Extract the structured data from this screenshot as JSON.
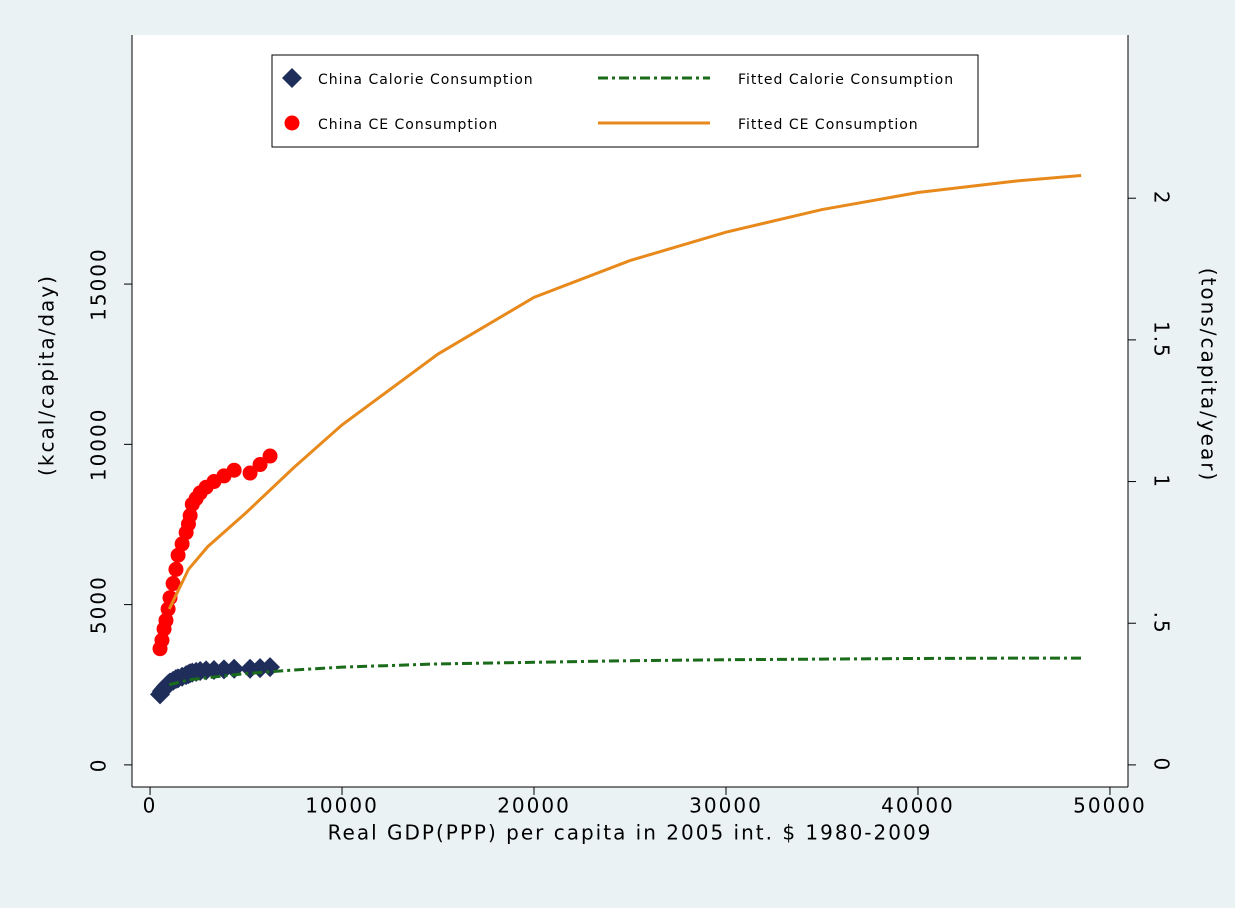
{
  "chart_data": {
    "type": "scatter",
    "x_label": "Real GDP(PPP) per capita in 2005 int. $ 1980-2009",
    "y_label": "(kcal/capita/day)",
    "y2_label": "(tons/capita/year)",
    "xlim": [
      -940,
      50940
    ],
    "xticks": [
      0,
      10000,
      20000,
      30000,
      40000,
      50000
    ],
    "ylim": [
      -690,
      22770
    ],
    "yticks": [
      0,
      5000,
      10000,
      15000
    ],
    "y2lim": [
      -0.078,
      2.576
    ],
    "y2ticks": [
      0,
      {
        "value": 0.5,
        "label": ".5"
      },
      1,
      {
        "value": 1.5,
        "label": "1.5"
      },
      2
    ],
    "series": [
      {
        "name": "China Calorie Consumption",
        "kind": "scatter",
        "marker": "diamond",
        "color": "#1f2d5a",
        "x": [
          520,
          620,
          730,
          830,
          940,
          1040,
          1200,
          1350,
          1460,
          1670,
          1880,
          2000,
          2090,
          2200,
          2400,
          2610,
          2920,
          3330,
          3850,
          4380,
          5210,
          5730,
          6250
        ],
        "values": [
          2200,
          2300,
          2380,
          2450,
          2520,
          2570,
          2620,
          2680,
          2700,
          2750,
          2800,
          2830,
          2860,
          2880,
          2900,
          2930,
          2950,
          2960,
          2980,
          3000,
          3000,
          3020,
          3050
        ]
      },
      {
        "name": "China CE Consumption",
        "kind": "scatter",
        "marker": "circle",
        "color": "#ff0000",
        "axis": "y2",
        "x": [
          520,
          620,
          730,
          830,
          940,
          1040,
          1200,
          1350,
          1460,
          1670,
          1880,
          2000,
          2090,
          2200,
          2400,
          2610,
          2920,
          3330,
          3850,
          4380,
          5210,
          5730,
          6250
        ],
        "values": [
          0.41,
          0.44,
          0.48,
          0.51,
          0.55,
          0.59,
          0.64,
          0.69,
          0.74,
          0.78,
          0.82,
          0.85,
          0.88,
          0.92,
          0.94,
          0.96,
          0.98,
          1.0,
          1.02,
          1.04,
          1.03,
          1.06,
          1.09
        ]
      },
      {
        "name": "Fitted Calorie Consumption",
        "kind": "line",
        "dash": "dash-dot",
        "color": "#1a6b1a",
        "x": [
          1000,
          2000,
          3000,
          5000,
          7500,
          10000,
          15000,
          20000,
          25000,
          30000,
          35000,
          40000,
          45000,
          48500
        ],
        "values": [
          2500,
          2650,
          2720,
          2850,
          2960,
          3050,
          3150,
          3200,
          3250,
          3280,
          3300,
          3320,
          3330,
          3330
        ]
      },
      {
        "name": "Fitted CE Consumption",
        "kind": "line",
        "dash": "solid",
        "color": "#e8891c",
        "axis": "y2",
        "x": [
          1000,
          2000,
          3000,
          5000,
          7500,
          10000,
          15000,
          20000,
          25000,
          30000,
          35000,
          40000,
          45000,
          48500
        ],
        "values": [
          0.55,
          0.69,
          0.77,
          0.89,
          1.05,
          1.2,
          1.45,
          1.65,
          1.78,
          1.88,
          1.96,
          2.02,
          2.06,
          2.08
        ]
      }
    ]
  }
}
